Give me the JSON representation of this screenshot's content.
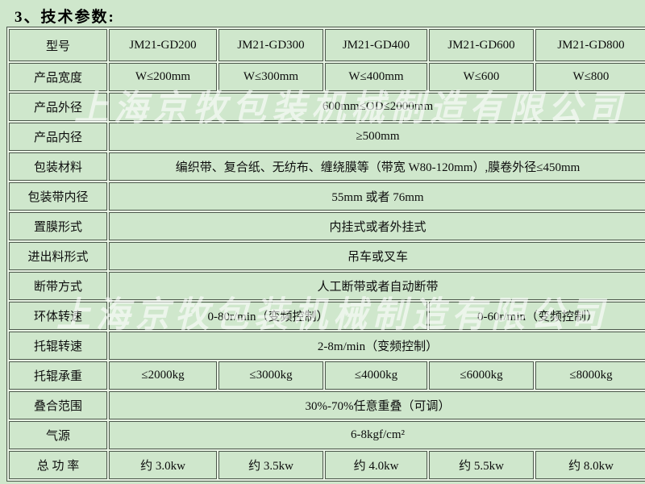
{
  "page": {
    "title": "3、技术参数:"
  },
  "watermark": {
    "text": "上海京牧包装机械制造有限公司"
  },
  "colors": {
    "page_background": "#cfe7cc",
    "cell_gap": "#e9f4e5",
    "cell_border": "#4d584c",
    "text": "#0d0d0d",
    "watermark": "rgba(255,255,255,0.6)"
  },
  "table": {
    "rows": [
      {
        "label": "型号",
        "cells": [
          {
            "text": "JM21-GD200",
            "span": 1
          },
          {
            "text": "JM21-GD300",
            "span": 1
          },
          {
            "text": "JM21-GD400",
            "span": 1
          },
          {
            "text": "JM21-GD600",
            "span": 1
          },
          {
            "text": "JM21-GD800",
            "span": 1
          }
        ]
      },
      {
        "label": "产品宽度",
        "cells": [
          {
            "text": "W≤200mm",
            "span": 1
          },
          {
            "text": "W≤300mm",
            "span": 1
          },
          {
            "text": "W≤400mm",
            "span": 1
          },
          {
            "text": "W≤600",
            "span": 1
          },
          {
            "text": "W≤800",
            "span": 1
          }
        ]
      },
      {
        "label": "产品外径",
        "cells": [
          {
            "text": "600mm≤OD≤2000mm",
            "span": 5
          }
        ]
      },
      {
        "label": "产品内径",
        "cells": [
          {
            "text": "≥500mm",
            "span": 5
          }
        ]
      },
      {
        "label": "包装材料",
        "cells": [
          {
            "text": "编织带、复合纸、无纺布、缠绕膜等（带宽 W80-120mm）,膜卷外径≤450mm",
            "span": 5
          }
        ]
      },
      {
        "label": "包装带内径",
        "cells": [
          {
            "text": "55mm 或者 76mm",
            "span": 5
          }
        ]
      },
      {
        "label": "置膜形式",
        "cells": [
          {
            "text": "内挂式或者外挂式",
            "span": 5
          }
        ]
      },
      {
        "label": "进出料形式",
        "cells": [
          {
            "text": "吊车或叉车",
            "span": 5
          }
        ]
      },
      {
        "label": "断带方式",
        "cells": [
          {
            "text": "人工断带或者自动断带",
            "span": 5
          }
        ]
      },
      {
        "label": "环体转速",
        "cells": [
          {
            "text": "0-80r/min（变频控制）",
            "span": 3
          },
          {
            "text": "0-60r/min（变频控制）",
            "span": 2
          }
        ]
      },
      {
        "label": "托辊转速",
        "cells": [
          {
            "text": "2-8m/min（变频控制）",
            "span": 5
          }
        ]
      },
      {
        "label": "托辊承重",
        "cells": [
          {
            "text": "≤2000kg",
            "span": 1
          },
          {
            "text": "≤3000kg",
            "span": 1
          },
          {
            "text": "≤4000kg",
            "span": 1
          },
          {
            "text": "≤6000kg",
            "span": 1
          },
          {
            "text": "≤8000kg",
            "span": 1
          }
        ]
      },
      {
        "label": "叠合范围",
        "cells": [
          {
            "text": "30%-70%任意重叠（可调）",
            "span": 5
          }
        ]
      },
      {
        "label": "气源",
        "cells": [
          {
            "text": "6-8kgf/cm²",
            "span": 5
          }
        ]
      },
      {
        "label": "总 功 率",
        "cells": [
          {
            "text": "约 3.0kw",
            "span": 1
          },
          {
            "text": "约 3.5kw",
            "span": 1
          },
          {
            "text": "约 4.0kw",
            "span": 1
          },
          {
            "text": "约 5.5kw",
            "span": 1
          },
          {
            "text": "约 8.0kw",
            "span": 1
          }
        ]
      }
    ]
  }
}
